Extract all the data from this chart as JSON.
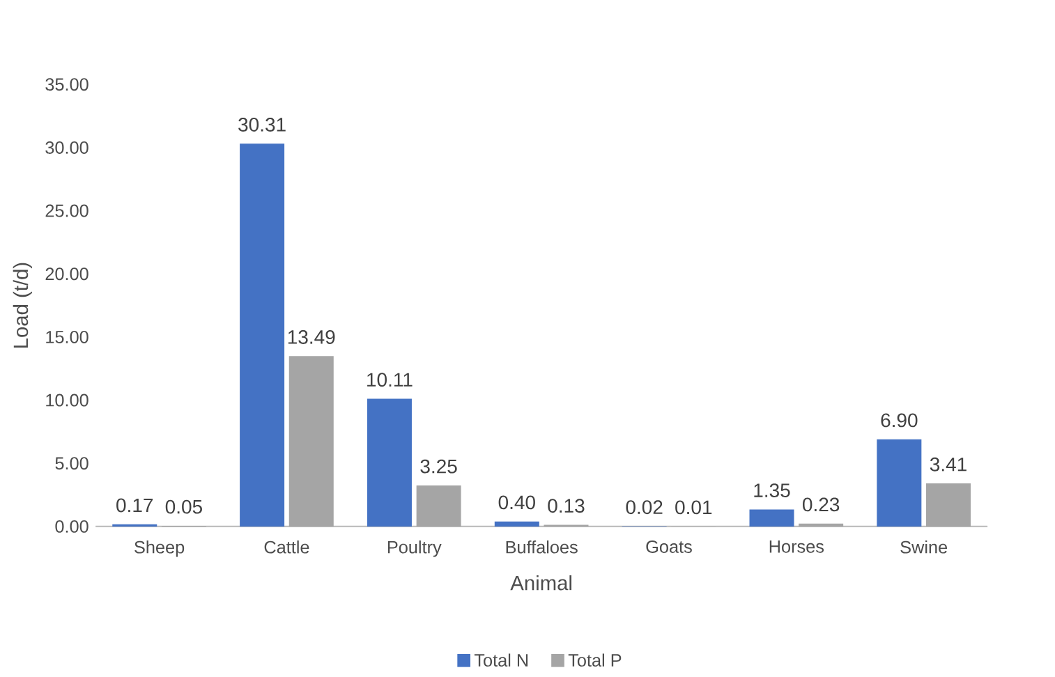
{
  "chart_data": {
    "type": "bar",
    "categories": [
      "Sheep",
      "Cattle",
      "Poultry",
      "Buffaloes",
      "Goats",
      "Horses",
      "Swine"
    ],
    "series": [
      {
        "name": "Total N",
        "color": "#4472c4",
        "values": [
          0.17,
          30.31,
          10.11,
          0.4,
          0.02,
          1.35,
          6.9
        ],
        "value_labels": [
          "0.17",
          "30.31",
          "10.11",
          "0.40",
          "0.02",
          "1.35",
          "6.90"
        ]
      },
      {
        "name": "Total P",
        "color": "#a5a5a5",
        "values": [
          0.05,
          13.49,
          3.25,
          0.13,
          0.01,
          0.23,
          3.41
        ],
        "value_labels": [
          "0.05",
          "13.49",
          "3.25",
          "0.13",
          "0.01",
          "0.23",
          "3.41"
        ]
      }
    ],
    "xlabel": "Animal",
    "ylabel": "Load (t/d)",
    "ylim": [
      0,
      35
    ],
    "yticks": [
      {
        "value": 0,
        "label": "0.00"
      },
      {
        "value": 5,
        "label": "5.00"
      },
      {
        "value": 10,
        "label": "10.00"
      },
      {
        "value": 15,
        "label": "15.00"
      },
      {
        "value": 20,
        "label": "20.00"
      },
      {
        "value": 25,
        "label": "25.00"
      },
      {
        "value": 30,
        "label": "30.00"
      },
      {
        "value": 35,
        "label": "35.00"
      }
    ],
    "legend": "bottom"
  }
}
